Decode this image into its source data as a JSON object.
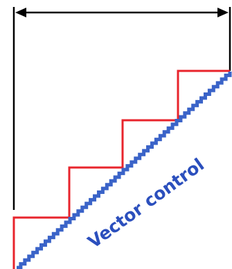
{
  "diagram": {
    "label": "Vector control",
    "colors": {
      "background": "#ffffff",
      "step_line": "#e8242c",
      "vector_line": "#3a63c8",
      "label": "#2b4fbd",
      "frame": "#000000"
    }
  }
}
